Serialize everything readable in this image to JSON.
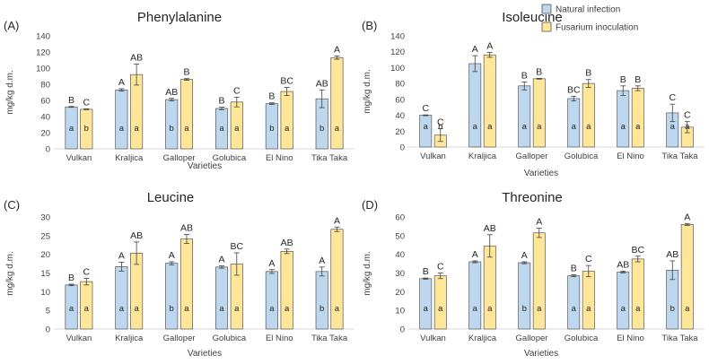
{
  "legend": {
    "items": [
      {
        "label": "Natural infection",
        "color": "#bdd7ee"
      },
      {
        "label": "Fusarium inoculation",
        "color": "#ffe699"
      }
    ]
  },
  "colors": {
    "bar_stroke": "#555555",
    "axis": "#d9d9d9",
    "text": "#404040",
    "title": "#262626"
  },
  "chart_data": [
    {
      "type": "bar",
      "panel": "(A)",
      "title": "Phenylalanine",
      "xlabel": "Varieties",
      "ylabel": "mg/kg d.m.",
      "ylim": [
        0,
        140
      ],
      "yticks": [
        0,
        20,
        40,
        60,
        80,
        100,
        120,
        140
      ],
      "categories": [
        "Vulkan",
        "Kraljica",
        "Galloper",
        "Golubica",
        "El Nino",
        "Tika Taka"
      ],
      "series": [
        {
          "name": "Natural infection",
          "values": [
            52,
            73,
            61,
            50,
            56,
            62
          ],
          "errors": [
            0.5,
            1.5,
            1.5,
            1.5,
            1,
            11
          ],
          "top_labels": [
            "B",
            "A",
            "AB",
            "B",
            "B",
            "AB"
          ],
          "inner_labels": [
            "a",
            "a",
            "b",
            "a",
            "b",
            "b"
          ]
        },
        {
          "name": "Fusarium inoculation",
          "values": [
            49,
            92,
            86,
            58,
            71,
            113
          ],
          "errors": [
            0.5,
            13,
            1,
            6,
            5,
            2
          ],
          "top_labels": [
            "C",
            "AB",
            "B",
            "C",
            "BC",
            "A"
          ],
          "inner_labels": [
            "b",
            "a",
            "a",
            "a",
            "a",
            "a"
          ]
        }
      ]
    },
    {
      "type": "bar",
      "panel": "(B)",
      "title": "Isoleucine",
      "xlabel": "Varieties",
      "ylabel": "mg/kg d.m.",
      "ylim": [
        0,
        140
      ],
      "yticks": [
        0,
        20,
        40,
        60,
        80,
        100,
        120,
        140
      ],
      "categories": [
        "Vulkan",
        "Kraljica",
        "Galloper",
        "Golubica",
        "El Nino",
        "Tika Taka"
      ],
      "series": [
        {
          "name": "Natural infection",
          "values": [
            40,
            105,
            77,
            61,
            71,
            43
          ],
          "errors": [
            0.5,
            10,
            5,
            3,
            6,
            11
          ],
          "top_labels": [
            "C",
            "A",
            "B",
            "BC",
            "B",
            "C"
          ],
          "inner_labels": [
            "a",
            "a",
            "a",
            "a",
            "a",
            "a"
          ]
        },
        {
          "name": "Fusarium inoculation",
          "values": [
            15,
            116,
            86,
            80,
            74,
            25
          ],
          "errors": [
            8,
            3,
            0.5,
            5,
            3,
            7
          ],
          "top_labels": [
            "C",
            "A",
            "B",
            "B",
            "B",
            "C"
          ],
          "inner_labels": [
            "b",
            "a",
            "a",
            "a",
            "a",
            "a"
          ]
        }
      ]
    },
    {
      "type": "bar",
      "panel": "(C)",
      "title": "Leucine",
      "xlabel": "Varieties",
      "ylabel": "mg/kg d.m.",
      "ylim": [
        0,
        30
      ],
      "yticks": [
        0,
        5,
        10,
        15,
        20,
        25,
        30
      ],
      "categories": [
        "Vulkan",
        "Kraljica",
        "Galloper",
        "Golubica",
        "El Nino",
        "Tika Taka"
      ],
      "series": [
        {
          "name": "Natural infection",
          "values": [
            11.8,
            16.7,
            17.6,
            16.6,
            15.4,
            15.4
          ],
          "errors": [
            0.2,
            1.2,
            0.4,
            0.3,
            0.5,
            1.2
          ],
          "top_labels": [
            "B",
            "A",
            "A",
            "A",
            "A",
            "A"
          ],
          "inner_labels": [
            "a",
            "a",
            "b",
            "a",
            "a",
            "b"
          ]
        },
        {
          "name": "Fusarium inoculation",
          "values": [
            12.7,
            20.3,
            24.1,
            17.4,
            20.8,
            26.7
          ],
          "errors": [
            0.9,
            3,
            1.2,
            3,
            0.6,
            0.6
          ],
          "top_labels": [
            "C",
            "AB",
            "AB",
            "BC",
            "AB",
            "A"
          ],
          "inner_labels": [
            "a",
            "a",
            "a",
            "a",
            "a",
            "a"
          ]
        }
      ]
    },
    {
      "type": "bar",
      "panel": "(D)",
      "title": "Threonine",
      "xlabel": "Varieties",
      "ylabel": "mg/kg d.m.",
      "ylim": [
        0,
        60
      ],
      "yticks": [
        0,
        10,
        20,
        30,
        40,
        50,
        60
      ],
      "categories": [
        "Vulkan",
        "Kraljica",
        "Galloper",
        "Golubica",
        "El Nino",
        "Tika Taka"
      ],
      "series": [
        {
          "name": "Natural infection",
          "values": [
            27,
            36,
            35.5,
            28.5,
            30.5,
            31.5
          ],
          "errors": [
            0.3,
            0.5,
            0.5,
            0.5,
            0.5,
            5
          ],
          "top_labels": [
            "B",
            "A",
            "A",
            "B",
            "AB",
            "AB"
          ],
          "inner_labels": [
            "a",
            "a",
            "b",
            "a",
            "a",
            "b"
          ]
        },
        {
          "name": "Fusarium inoculation",
          "values": [
            28.5,
            44.5,
            51.5,
            31,
            37.5,
            56
          ],
          "errors": [
            1.5,
            6,
            2.5,
            3,
            1.5,
            0.5
          ],
          "top_labels": [
            "C",
            "AB",
            "A",
            "C",
            "BC",
            "A"
          ],
          "inner_labels": [
            "a",
            "a",
            "a",
            "a",
            "a",
            "a"
          ]
        }
      ]
    }
  ]
}
